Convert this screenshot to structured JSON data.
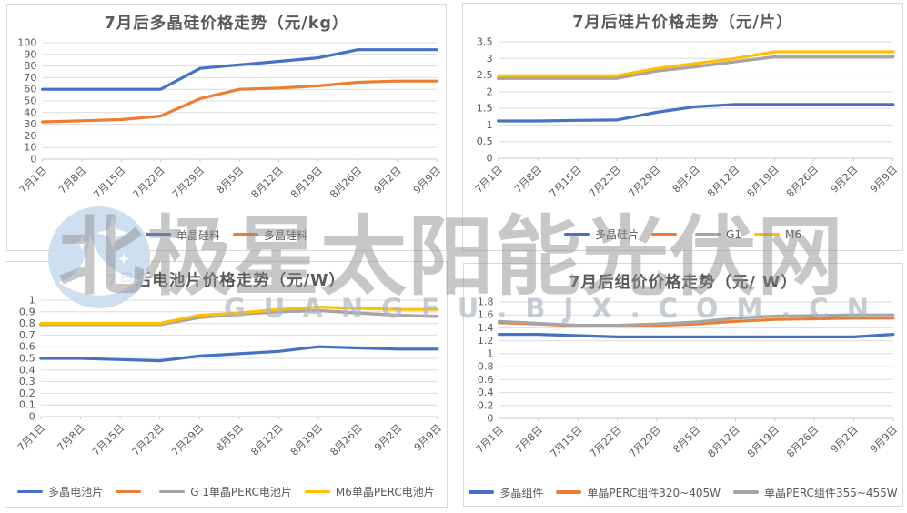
{
  "watermark": {
    "main_text": "北极星太阳能光伏网",
    "sub_text": "GUANGFU.BJX.COM.CN",
    "logo_name": "bjx-moon-stars-logo",
    "main_color": "#8c8c8c",
    "sub_color": "#aeb8c2",
    "logo_color": "#c9dcee"
  },
  "palette": {
    "blue": "#4472C4",
    "orange": "#ED7D31",
    "gray": "#A5A5A5",
    "yellow": "#FFC000",
    "gridline": "#dcdcdc",
    "axis": "#c9c9c9",
    "text": "#595959"
  },
  "chart_data": [
    {
      "type": "line",
      "title": "7月后多晶硅价格走势（元/kg）",
      "categories": [
        "7月1日",
        "7月8日",
        "7月15日",
        "7月22日",
        "7月29日",
        "8月5日",
        "8月12日",
        "8月19日",
        "8月26日",
        "9月2日",
        "9月9日"
      ],
      "y_ticks": [
        "100",
        "90",
        "80",
        "70",
        "60",
        "50",
        "40",
        "30",
        "20",
        "10",
        "0"
      ],
      "ylim": [
        0,
        100
      ],
      "grid": true,
      "legend_position": "bottom",
      "series": [
        {
          "name": "单晶硅料",
          "color": "#4472C4",
          "values": [
            60,
            60,
            60,
            60,
            78,
            81,
            84,
            87,
            94,
            94,
            94
          ]
        },
        {
          "name": "多晶硅料",
          "color": "#ED7D31",
          "values": [
            32,
            33,
            34,
            37,
            52,
            60,
            61,
            63,
            66,
            67,
            67
          ]
        }
      ]
    },
    {
      "type": "line",
      "title": "7月后硅片价格走势（元/片）",
      "categories": [
        "7月1日",
        "7月8日",
        "7月15日",
        "7月22日",
        "7月29日",
        "8月5日",
        "8月12日",
        "8月19日",
        "8月26日",
        "9月2日",
        "9月9日"
      ],
      "y_ticks": [
        "3.5",
        "3",
        "2.5",
        "2",
        "1.5",
        "1",
        "0.5",
        "0"
      ],
      "ylim": [
        0,
        3.5
      ],
      "grid": true,
      "legend_position": "bottom",
      "series": [
        {
          "name": "多晶硅片",
          "color": "#4472C4",
          "values": [
            1.12,
            1.12,
            1.14,
            1.15,
            1.38,
            1.55,
            1.62,
            1.62,
            1.62,
            1.62,
            1.62
          ]
        },
        {
          "name": "",
          "color": "#ED7D31",
          "values": [
            2.4,
            2.4,
            2.4,
            2.4,
            2.62,
            2.75,
            2.9,
            3.05,
            3.05,
            3.05,
            3.05
          ]
        },
        {
          "name": "G1",
          "color": "#A5A5A5",
          "values": [
            2.4,
            2.4,
            2.4,
            2.4,
            2.62,
            2.75,
            2.9,
            3.05,
            3.05,
            3.05,
            3.05
          ]
        },
        {
          "name": "M6",
          "color": "#FFC000",
          "values": [
            2.48,
            2.48,
            2.48,
            2.48,
            2.7,
            2.85,
            3.0,
            3.2,
            3.2,
            3.2,
            3.2
          ]
        }
      ]
    },
    {
      "type": "line",
      "title": "7月后电池片价格走势（元/W）",
      "categories": [
        "7月1日",
        "7月8日",
        "7月15日",
        "7月22日",
        "7月29日",
        "8月5日",
        "8月12日",
        "8月19日",
        "8月26日",
        "9月2日",
        "9月9日"
      ],
      "y_ticks": [
        "1",
        "0.9",
        "0.8",
        "0.7",
        "0.6",
        "0.5",
        "0.4",
        "0.3",
        "0.2",
        "0.1",
        "0"
      ],
      "ylim": [
        0,
        1
      ],
      "grid": true,
      "legend_position": "bottom",
      "series": [
        {
          "name": "多晶电池片",
          "color": "#4472C4",
          "values": [
            0.5,
            0.5,
            0.49,
            0.48,
            0.52,
            0.54,
            0.56,
            0.6,
            0.59,
            0.58,
            0.58
          ]
        },
        {
          "name": "",
          "color": "#ED7D31",
          "values": [
            0.79,
            0.79,
            0.79,
            0.79,
            0.85,
            0.88,
            0.9,
            0.91,
            0.89,
            0.87,
            0.86
          ]
        },
        {
          "name": "G 1单晶PERC电池片",
          "color": "#A5A5A5",
          "values": [
            0.79,
            0.79,
            0.79,
            0.79,
            0.85,
            0.88,
            0.9,
            0.91,
            0.89,
            0.87,
            0.86
          ]
        },
        {
          "name": "M6单晶PERC电池片",
          "color": "#FFC000",
          "values": [
            0.8,
            0.8,
            0.8,
            0.8,
            0.87,
            0.89,
            0.92,
            0.94,
            0.93,
            0.92,
            0.92
          ]
        }
      ]
    },
    {
      "type": "line",
      "title": "7月后组价价格走势（元/ W）",
      "categories": [
        "7月1日",
        "7月8日",
        "7月15日",
        "7月22日",
        "7月29日",
        "8月5日",
        "8月12日",
        "8月19日",
        "8月26日",
        "9月2日",
        "9月9日"
      ],
      "y_ticks": [
        "1.8",
        "1.6",
        "1.4",
        "1.2",
        "1",
        "0.8",
        "0.6",
        "0.4",
        "0.2",
        "0"
      ],
      "ylim": [
        0,
        1.8
      ],
      "grid": true,
      "legend_position": "bottom",
      "series": [
        {
          "name": "多晶组件",
          "color": "#4472C4",
          "values": [
            1.3,
            1.3,
            1.28,
            1.26,
            1.26,
            1.26,
            1.26,
            1.26,
            1.26,
            1.26,
            1.3
          ]
        },
        {
          "name": "单晶PERC组件320~405W",
          "color": "#ED7D31",
          "values": [
            1.48,
            1.46,
            1.43,
            1.43,
            1.44,
            1.46,
            1.5,
            1.53,
            1.54,
            1.55,
            1.55
          ]
        },
        {
          "name": "单晶PERC组件355~455W",
          "color": "#A5A5A5",
          "values": [
            1.5,
            1.47,
            1.44,
            1.44,
            1.46,
            1.49,
            1.55,
            1.58,
            1.59,
            1.6,
            1.6
          ]
        }
      ]
    }
  ]
}
